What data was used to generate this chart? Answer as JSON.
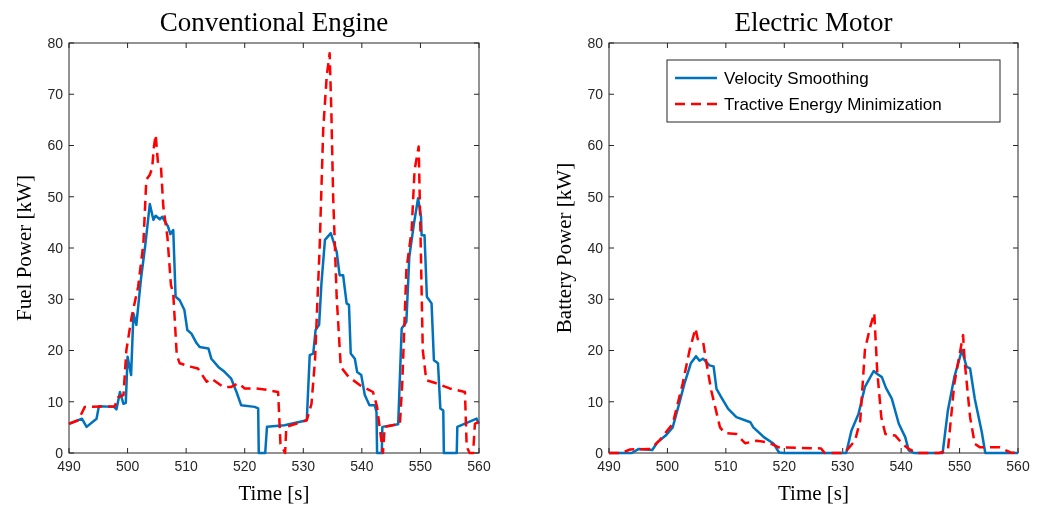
{
  "chart_data": [
    {
      "type": "line",
      "title": "Conventional Engine",
      "xlabel": "Time [s]",
      "ylabel": "Fuel Power [kW]",
      "xlim": [
        490,
        560
      ],
      "ylim": [
        0,
        80
      ],
      "xticks": [
        490,
        500,
        510,
        520,
        530,
        540,
        550,
        560
      ],
      "yticks": [
        0,
        10,
        20,
        30,
        40,
        50,
        60,
        70,
        80
      ],
      "grid": false,
      "legend": false,
      "series": [
        {
          "color": "#0072bd",
          "line_style": "solid",
          "x": [
            490,
            492.2,
            493,
            494.7,
            495.1,
            497.7,
            498.1,
            498.7,
            499.3,
            499.7,
            500,
            500.6,
            501,
            501.5,
            502.3,
            503,
            503.8,
            504.4,
            504.8,
            505.5,
            505.9,
            506.9,
            507.3,
            507.8,
            508.2,
            508.9,
            509.7,
            510.2,
            510.9,
            511.8,
            512.3,
            513.8,
            514.3,
            515.5,
            516.6,
            517.7,
            518.6,
            519.4,
            521.7,
            522.3,
            522.4,
            523.5,
            523.8,
            526.8,
            530.6,
            531.1,
            531.7,
            532.1,
            532.7,
            533.1,
            533.7,
            534.7,
            535.7,
            536.2,
            536.8,
            537.4,
            537.8,
            538.1,
            538.8,
            539.2,
            539.9,
            540.5,
            541.3,
            542.2,
            542.5,
            542.6,
            543.4,
            543.5,
            546.2,
            546.8,
            547.6,
            548.1,
            548.9,
            549.6,
            550.1,
            550.2,
            550.7,
            551.1,
            551.9,
            552.3,
            553,
            553.4,
            553.9,
            554,
            556.2,
            556.3,
            559,
            559.6,
            560
          ],
          "values": [
            5.7,
            6.7,
            5.1,
            6.7,
            9.1,
            9,
            8.5,
            11.9,
            9.6,
            9.8,
            18.8,
            15.2,
            27.2,
            25,
            34.1,
            40.3,
            48.6,
            45.5,
            46.3,
            45.6,
            46.1,
            44.2,
            42.7,
            43.5,
            30.5,
            29.8,
            27.9,
            24,
            23.3,
            21.4,
            20.7,
            20.4,
            18.4,
            16.8,
            15.8,
            14.5,
            11.9,
            9.3,
            9,
            8.7,
            0,
            0,
            5.1,
            5.4,
            6.4,
            19.1,
            19.4,
            24,
            25,
            33.1,
            41.6,
            42.9,
            39.3,
            34.7,
            34.7,
            29.2,
            28.9,
            19.4,
            18.4,
            15.8,
            15.2,
            11.3,
            9.3,
            9.3,
            8,
            0,
            0,
            5.1,
            5.6,
            24.3,
            25.6,
            38.3,
            44.8,
            49.7,
            46.1,
            42.5,
            42.5,
            30.5,
            29.2,
            18.1,
            17.5,
            8.7,
            8.3,
            0,
            0,
            5.1,
            6.4,
            6.7,
            5.7
          ]
        },
        {
          "color": "#ff0000",
          "line_style": "dashed",
          "x": [
            490,
            491.6,
            492.7,
            497.8,
            498.4,
            499.3,
            499.8,
            500.7,
            501.8,
            502.7,
            503.2,
            503.8,
            504.2,
            504.5,
            504.8,
            505.2,
            505.7,
            506.1,
            506.8,
            507.4,
            507.8,
            508.4,
            508.9,
            510.9,
            512,
            513.5,
            514.3,
            516.3,
            517.7,
            518.9,
            520,
            521.7,
            523.4,
            525.7,
            526.1,
            526.9,
            527.1,
            530.6,
            531.4,
            532,
            532.8,
            533.4,
            534,
            534.5,
            534.8,
            535.1,
            535.7,
            536.4,
            537.7,
            539.7,
            541.9,
            542.6,
            543.6,
            543.9,
            546.5,
            546.9,
            547.6,
            548.5,
            549,
            549.7,
            550,
            550.4,
            551,
            552.7,
            555,
            557.6,
            557.9,
            558.4,
            559,
            559.3,
            560
          ],
          "values": [
            5.7,
            6.4,
            9,
            9.1,
            10.9,
            11.3,
            20.1,
            26.6,
            32.4,
            40.9,
            53.3,
            54.3,
            55.6,
            59.8,
            62.1,
            56.5,
            55.9,
            48.1,
            42.2,
            32.8,
            31.1,
            19.1,
            17.5,
            16.8,
            16.5,
            13.9,
            14.5,
            12.9,
            12.9,
            13.6,
            12.6,
            12.6,
            12.4,
            11.9,
            1.8,
            0,
            5.1,
            6.4,
            9.6,
            18.1,
            40.3,
            63.1,
            73.5,
            78,
            66.3,
            50,
            30.5,
            16.8,
            14.9,
            13.2,
            11.9,
            9,
            0,
            5.1,
            5.7,
            13.6,
            35.7,
            43.5,
            55.2,
            59.8,
            43.5,
            20.1,
            14.2,
            13.6,
            12.6,
            11.9,
            1.2,
            0,
            0,
            5.7,
            6.1
          ]
        }
      ]
    },
    {
      "type": "line",
      "title": "Electric Motor",
      "xlabel": "Time [s]",
      "ylabel": "Battery Power [kW]",
      "xlim": [
        490,
        560
      ],
      "ylim": [
        0,
        80
      ],
      "xticks": [
        490,
        500,
        510,
        520,
        530,
        540,
        550,
        560
      ],
      "yticks": [
        0,
        10,
        20,
        30,
        40,
        50,
        60,
        70,
        80
      ],
      "grid": false,
      "legend": "top right",
      "series": [
        {
          "name": "Velocity Smoothing",
          "color": "#0072bd",
          "line_style": "solid",
          "x": [
            490,
            493.9,
            495.1,
            497.4,
            498.3,
            499.7,
            500.9,
            502,
            502.9,
            504,
            504.9,
            505.5,
            506.1,
            507.2,
            507.9,
            508.4,
            509.2,
            510.4,
            511.8,
            514.2,
            514.7,
            516.5,
            518.2,
            519.1,
            519.9,
            530.6,
            531.5,
            532.7,
            533.8,
            535.3,
            535.8,
            536.7,
            537.4,
            538.4,
            539.6,
            540.7,
            541.3,
            542.2,
            547.1,
            548,
            549.1,
            550.4,
            551.2,
            551.8,
            552.6,
            553.8,
            554.4,
            560
          ],
          "values": [
            0,
            0,
            0.8,
            0.6,
            2.1,
            3.4,
            5,
            9.6,
            13.5,
            17.5,
            18.9,
            18,
            18.4,
            17.1,
            16.9,
            12.5,
            10.9,
            8.6,
            7,
            6,
            5,
            3.1,
            1.8,
            0.1,
            0,
            0,
            4.4,
            7.6,
            12.9,
            16,
            15.5,
            14.8,
            12.7,
            10.6,
            5.7,
            3.1,
            0.5,
            0,
            0,
            8.3,
            14.8,
            20.1,
            16.8,
            16.5,
            10.6,
            4.1,
            0,
            0
          ]
        },
        {
          "name": "Tractive Energy Minimization",
          "color": "#ff0000",
          "line_style": "dashed",
          "x": [
            490,
            492.2,
            493.6,
            497.1,
            498.6,
            500.9,
            502.6,
            503.8,
            504.8,
            505.2,
            506.1,
            506.6,
            507.5,
            509,
            509.8,
            511.8,
            513.3,
            515.3,
            517.1,
            519.1,
            522.3,
            526.3,
            526.9,
            530.3,
            532.1,
            533,
            533.8,
            534.7,
            535.4,
            535.9,
            536.6,
            537.3,
            539,
            540.2,
            541.3,
            542.8,
            546.5,
            548,
            549.1,
            550.6,
            550.9,
            551.8,
            552.6,
            553.5,
            556.9,
            558.7,
            560
          ],
          "values": [
            0,
            0,
            0.7,
            0.8,
            2.4,
            5.7,
            13.5,
            20.1,
            24.3,
            22.2,
            21.7,
            18.1,
            12.2,
            5,
            3.9,
            3.7,
            1.9,
            2.4,
            2.1,
            1.1,
            1,
            0.9,
            0,
            0,
            2.4,
            6.3,
            20.1,
            24.6,
            27.3,
            16.1,
            7,
            3.7,
            3.4,
            1.8,
            0.8,
            0,
            0,
            0.5,
            13.5,
            23,
            17.5,
            7,
            1.8,
            1.1,
            1.1,
            0.1,
            0
          ]
        }
      ]
    }
  ]
}
